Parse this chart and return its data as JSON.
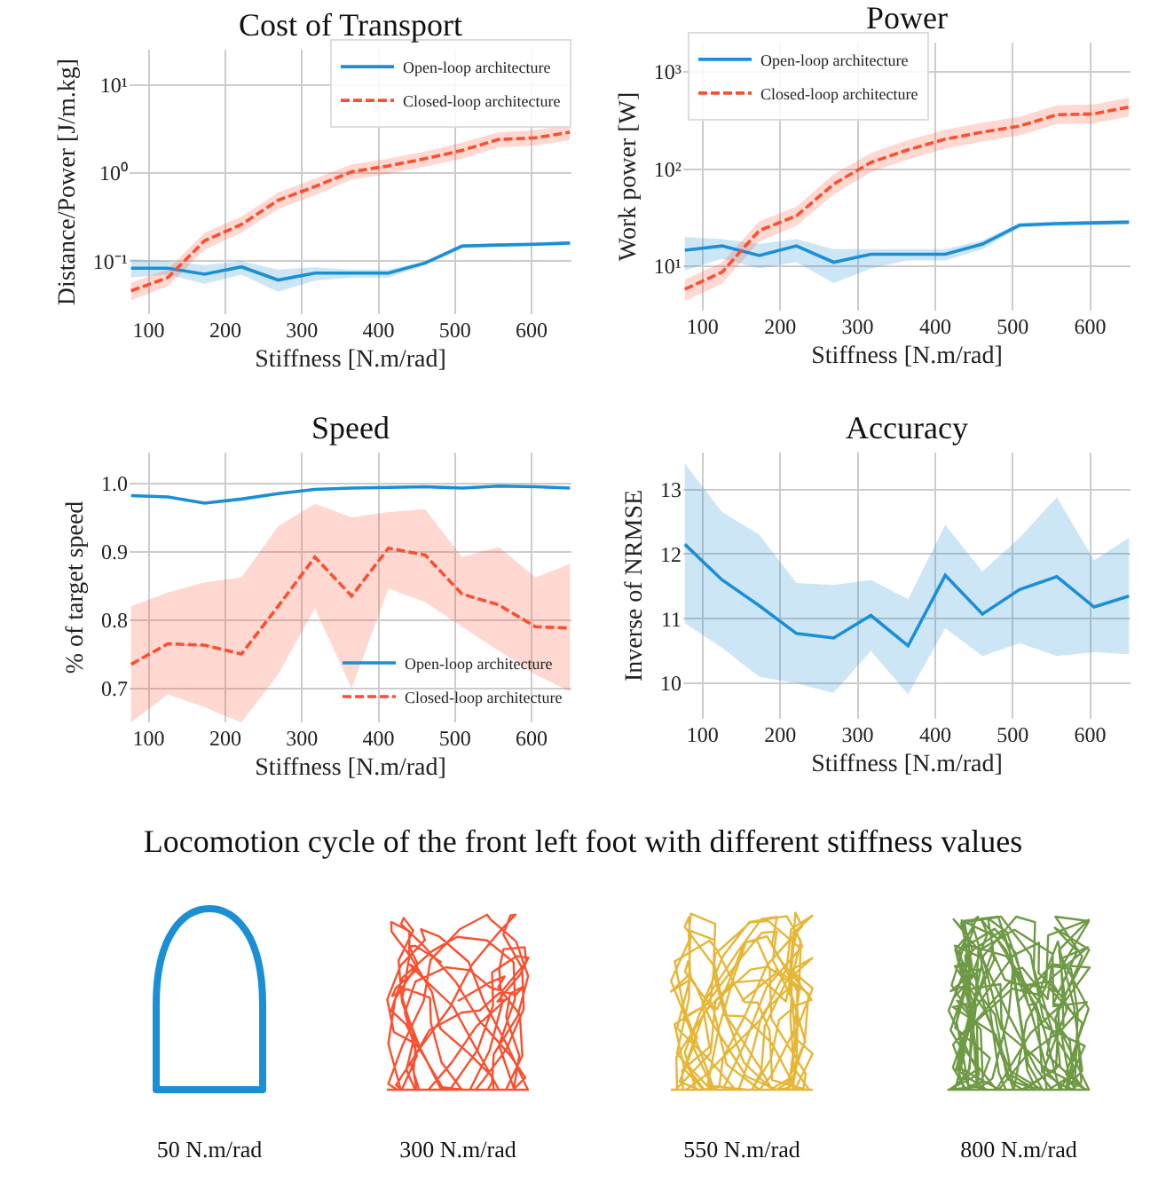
{
  "chart_data": [
    {
      "type": "line",
      "title": "Cost of Transport",
      "xlabel": "Stiffness [N.m/rad]",
      "ylabel": "Distance/Power [J/m.kg]",
      "log": "y",
      "grid": true,
      "legend": "top right",
      "xlim": [
        75,
        652
      ],
      "xticks": [
        100,
        200,
        300,
        400,
        500,
        600
      ],
      "ylim": [
        0.025,
        25
      ],
      "yticks": [
        {
          "value": 0.1,
          "label": "10⁻¹"
        },
        {
          "value": 1,
          "label": "10⁰"
        },
        {
          "value": 10,
          "label": "10¹"
        }
      ],
      "x": [
        77,
        125,
        173,
        221,
        269,
        317,
        365,
        413,
        461,
        509,
        557,
        605,
        650
      ],
      "series": [
        {
          "name": "Open-loop architecture",
          "color": "#1a8fd6",
          "line_style": "solid",
          "values": [
            0.083,
            0.083,
            0.071,
            0.086,
            0.061,
            0.073,
            0.073,
            0.073,
            0.095,
            0.148,
            0.152,
            0.155,
            0.16
          ],
          "lower": [
            0.065,
            0.07,
            0.055,
            0.07,
            0.045,
            0.06,
            0.065,
            0.065,
            0.09,
            0.14,
            0.145,
            0.148,
            0.152
          ],
          "upper": [
            0.105,
            0.1,
            0.09,
            0.1,
            0.08,
            0.085,
            0.08,
            0.08,
            0.1,
            0.155,
            0.16,
            0.162,
            0.168
          ]
        },
        {
          "name": "Closed-loop architecture",
          "color": "#fb4f2f",
          "line_style": "dashed",
          "values": [
            0.046,
            0.065,
            0.17,
            0.26,
            0.49,
            0.7,
            1.03,
            1.2,
            1.45,
            1.8,
            2.4,
            2.5,
            2.9
          ],
          "lower": [
            0.036,
            0.052,
            0.135,
            0.21,
            0.39,
            0.56,
            0.84,
            0.98,
            1.18,
            1.45,
            1.95,
            2.05,
            2.35
          ],
          "upper": [
            0.057,
            0.08,
            0.21,
            0.32,
            0.6,
            0.86,
            1.25,
            1.45,
            1.75,
            2.2,
            2.9,
            3.05,
            3.5
          ]
        }
      ]
    },
    {
      "type": "line",
      "title": "Power",
      "xlabel": "Stiffness [N.m/rad]",
      "ylabel": "Work power [W]",
      "log": "y",
      "grid": true,
      "legend": "top left",
      "xlim": [
        75,
        652
      ],
      "xticks": [
        100,
        200,
        300,
        400,
        500,
        600
      ],
      "ylim": [
        3.5,
        2000
      ],
      "yticks": [
        {
          "value": 10,
          "label": "10¹"
        },
        {
          "value": 100,
          "label": "10²"
        },
        {
          "value": 1000,
          "label": "10³"
        }
      ],
      "x": [
        77,
        125,
        173,
        221,
        269,
        317,
        365,
        413,
        461,
        509,
        557,
        605,
        650
      ],
      "series": [
        {
          "name": "Open-loop architecture",
          "color": "#1a8fd6",
          "line_style": "solid",
          "values": [
            14.6,
            16.2,
            12.9,
            16.2,
            11,
            13.3,
            13.3,
            13.3,
            16.9,
            26.5,
            27.5,
            28,
            28.4
          ],
          "lower": [
            9,
            12,
            9.5,
            11,
            6.7,
            9.5,
            11.5,
            11.5,
            15,
            25,
            26,
            26.5,
            27
          ],
          "upper": [
            20,
            19,
            17,
            19,
            15,
            15,
            15,
            15,
            18.5,
            28,
            29,
            29.5,
            30
          ]
        },
        {
          "name": "Closed-loop architecture",
          "color": "#fb4f2f",
          "line_style": "dashed",
          "values": [
            5.8,
            8.7,
            23.3,
            33,
            70,
            117,
            158,
            203,
            240,
            277,
            362,
            370,
            435
          ],
          "lower": [
            4.4,
            6.6,
            18,
            26,
            55,
            93,
            126,
            162,
            192,
            222,
            290,
            296,
            348
          ],
          "upper": [
            7.3,
            10.9,
            29,
            41,
            88,
            146,
            198,
            254,
            300,
            346,
            452,
            462,
            544
          ]
        }
      ]
    },
    {
      "type": "line",
      "title": "Speed",
      "xlabel": "Stiffness [N.m/rad]",
      "ylabel": "% of target speed",
      "grid": true,
      "legend": "bottom right",
      "xlim": [
        75,
        652
      ],
      "xticks": [
        100,
        200,
        300,
        400,
        500,
        600
      ],
      "ylim": [
        0.65,
        1.045
      ],
      "yticks": [
        {
          "value": 0.7,
          "label": "0.7"
        },
        {
          "value": 0.8,
          "label": "0.8"
        },
        {
          "value": 0.9,
          "label": "0.9"
        },
        {
          "value": 1,
          "label": "1.0"
        }
      ],
      "x": [
        77,
        125,
        173,
        221,
        269,
        317,
        365,
        413,
        461,
        509,
        557,
        605,
        650
      ],
      "series": [
        {
          "name": "Open-loop architecture",
          "color": "#1a8fd6",
          "line_style": "solid",
          "values": [
            0.982,
            0.98,
            0.971,
            0.977,
            0.985,
            0.991,
            0.993,
            0.994,
            0.995,
            0.993,
            0.996,
            0.995,
            0.993
          ]
        },
        {
          "name": "Closed-loop architecture",
          "color": "#fb4f2f",
          "line_style": "dashed",
          "values": [
            0.735,
            0.765,
            0.763,
            0.75,
            0.82,
            0.892,
            0.835,
            0.905,
            0.895,
            0.838,
            0.822,
            0.79,
            0.788
          ],
          "lower": [
            0.65,
            0.691,
            0.672,
            0.65,
            0.72,
            0.817,
            0.7,
            0.846,
            0.826,
            0.79,
            0.755,
            0.72,
            0.695
          ],
          "upper": [
            0.82,
            0.84,
            0.855,
            0.862,
            0.937,
            0.97,
            0.95,
            0.958,
            0.962,
            0.892,
            0.907,
            0.862,
            0.882
          ]
        }
      ]
    },
    {
      "type": "line",
      "title": "Accuracy",
      "xlabel": "Stiffness [N.m/rad]",
      "ylabel": "Inverse of NRMSE",
      "grid": true,
      "xlim": [
        75,
        652
      ],
      "xticks": [
        100,
        200,
        300,
        400,
        500,
        600
      ],
      "ylim": [
        9.45,
        13.57
      ],
      "yticks": [
        10,
        11,
        12,
        13
      ],
      "x": [
        77,
        125,
        173,
        221,
        269,
        317,
        365,
        413,
        461,
        509,
        557,
        605,
        650
      ],
      "series": [
        {
          "color": "#1a8fd6",
          "line_style": "solid",
          "values": [
            12.15,
            11.6,
            11.2,
            10.77,
            10.7,
            11.05,
            10.58,
            11.67,
            11.07,
            11.45,
            11.65,
            11.18,
            11.35
          ],
          "lower": [
            10.93,
            10.55,
            10.1,
            10.0,
            9.85,
            10.5,
            9.83,
            10.85,
            10.42,
            10.62,
            10.42,
            10.48,
            10.45
          ],
          "upper": [
            13.4,
            12.65,
            12.3,
            11.55,
            11.52,
            11.6,
            11.3,
            12.45,
            11.73,
            12.25,
            12.88,
            11.9,
            12.25
          ]
        }
      ]
    },
    {
      "type": "other",
      "title": "Locomotion cycle of the front left foot with different stiffness values",
      "annotations": [
        "50 N.m/rad",
        "300 N.m/rad",
        "550 N.m/rad",
        "800 N.m/rad"
      ]
    }
  ]
}
